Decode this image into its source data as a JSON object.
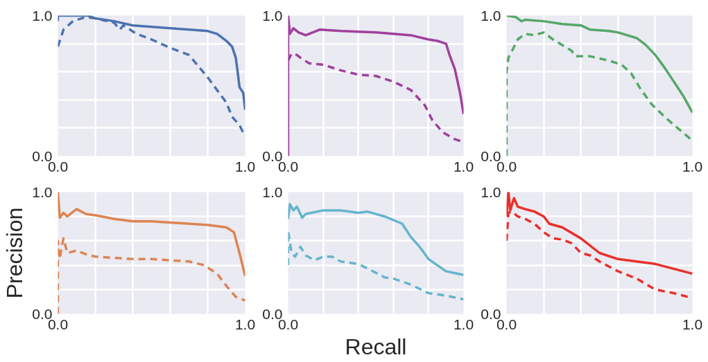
{
  "chart_data": [
    {
      "type": "line",
      "xlim": [
        0,
        1
      ],
      "ylim": [
        0,
        1
      ],
      "xticks": [
        {
          "value": 0,
          "label": "0.0"
        },
        {
          "value": 0.2,
          "label": null
        },
        {
          "value": 0.4,
          "label": null
        },
        {
          "value": 0.6,
          "label": null
        },
        {
          "value": 0.8,
          "label": null
        },
        {
          "value": 1,
          "label": "1.0"
        }
      ],
      "yticks": [
        {
          "value": 0,
          "label": "0.0"
        },
        {
          "value": 0.2,
          "label": null
        },
        {
          "value": 0.4,
          "label": null
        },
        {
          "value": 0.6,
          "label": null
        },
        {
          "value": 0.8,
          "label": null
        },
        {
          "value": 1,
          "label": "1.0"
        }
      ],
      "grid": true,
      "marker": "none",
      "series": [
        {
          "color": "#4c72b0",
          "line_style": "solid",
          "x": [
            0,
            0,
            0.16,
            0.2,
            0.3,
            0.4,
            0.5,
            0.6,
            0.7,
            0.8,
            0.85,
            0.9,
            0.93,
            0.95,
            0.96,
            0.97,
            0.99,
            1.0
          ],
          "values": [
            0.96,
            1.0,
            1.0,
            0.98,
            0.96,
            0.93,
            0.92,
            0.91,
            0.9,
            0.89,
            0.87,
            0.82,
            0.78,
            0.7,
            0.6,
            0.49,
            0.45,
            0.33
          ]
        },
        {
          "color": "#4c72b0",
          "line_style": "dashed",
          "x": [
            0,
            0.01,
            0.03,
            0.08,
            0.15,
            0.2,
            0.3,
            0.33,
            0.35,
            0.42,
            0.5,
            0.6,
            0.7,
            0.75,
            0.8,
            0.85,
            0.9,
            0.93,
            0.97,
            1.0
          ],
          "values": [
            0.78,
            0.82,
            0.9,
            0.96,
            0.99,
            0.98,
            0.95,
            0.9,
            0.93,
            0.87,
            0.83,
            0.77,
            0.72,
            0.64,
            0.56,
            0.47,
            0.38,
            0.28,
            0.22,
            0.14
          ]
        }
      ]
    },
    {
      "type": "line",
      "xlim": [
        0,
        1
      ],
      "ylim": [
        0,
        1
      ],
      "xticks": [
        {
          "value": 0,
          "label": "0.0"
        },
        {
          "value": 0.2,
          "label": null
        },
        {
          "value": 0.4,
          "label": null
        },
        {
          "value": 0.6,
          "label": null
        },
        {
          "value": 0.8,
          "label": null
        },
        {
          "value": 1,
          "label": "1.0"
        }
      ],
      "yticks": [
        {
          "value": 0,
          "label": "0.0"
        },
        {
          "value": 0.2,
          "label": null
        },
        {
          "value": 0.4,
          "label": null
        },
        {
          "value": 0.6,
          "label": null
        },
        {
          "value": 0.8,
          "label": null
        },
        {
          "value": 1,
          "label": "1.0"
        }
      ],
      "grid": true,
      "marker": "none",
      "series": [
        {
          "color": "#a0409c",
          "line_style": "solid",
          "x": [
            0,
            0,
            0.01,
            0.03,
            0.06,
            0.1,
            0.18,
            0.3,
            0.5,
            0.7,
            0.8,
            0.85,
            0.9,
            0.92,
            0.95,
            0.98,
            1.0
          ],
          "values": [
            0,
            1.0,
            0.87,
            0.91,
            0.88,
            0.86,
            0.9,
            0.89,
            0.88,
            0.86,
            0.83,
            0.82,
            0.8,
            0.72,
            0.62,
            0.45,
            0.3
          ]
        },
        {
          "color": "#a0409c",
          "line_style": "dashed",
          "x": [
            0,
            0.02,
            0.05,
            0.07,
            0.12,
            0.2,
            0.3,
            0.4,
            0.5,
            0.6,
            0.7,
            0.78,
            0.82,
            0.88,
            0.95,
            1.0
          ],
          "values": [
            0.68,
            0.73,
            0.72,
            0.7,
            0.66,
            0.65,
            0.61,
            0.58,
            0.57,
            0.53,
            0.47,
            0.36,
            0.26,
            0.17,
            0.12,
            0.1
          ]
        }
      ]
    },
    {
      "type": "line",
      "xlim": [
        0,
        1
      ],
      "ylim": [
        0,
        1
      ],
      "xticks": [
        {
          "value": 0,
          "label": "0.0"
        },
        {
          "value": 0.2,
          "label": null
        },
        {
          "value": 0.4,
          "label": null
        },
        {
          "value": 0.6,
          "label": null
        },
        {
          "value": 0.8,
          "label": null
        },
        {
          "value": 1,
          "label": "1.0"
        }
      ],
      "yticks": [
        {
          "value": 0,
          "label": "0.0"
        },
        {
          "value": 0.2,
          "label": null
        },
        {
          "value": 0.4,
          "label": null
        },
        {
          "value": 0.6,
          "label": null
        },
        {
          "value": 0.8,
          "label": null
        },
        {
          "value": 1,
          "label": "1.0"
        }
      ],
      "grid": true,
      "marker": "none",
      "series": [
        {
          "color": "#55a868",
          "line_style": "solid",
          "x": [
            0,
            0.05,
            0.08,
            0.1,
            0.2,
            0.3,
            0.4,
            0.45,
            0.55,
            0.6,
            0.7,
            0.75,
            0.8,
            0.85,
            0.9,
            0.95,
            1.0
          ],
          "values": [
            1.0,
            0.99,
            0.96,
            0.97,
            0.96,
            0.94,
            0.93,
            0.9,
            0.89,
            0.88,
            0.84,
            0.79,
            0.72,
            0.63,
            0.53,
            0.43,
            0.31
          ]
        },
        {
          "color": "#55a868",
          "line_style": "dashed",
          "x": [
            0,
            0,
            0.01,
            0.03,
            0.06,
            0.1,
            0.15,
            0.2,
            0.25,
            0.3,
            0.35,
            0.37,
            0.45,
            0.55,
            0.62,
            0.67,
            0.72,
            0.78,
            0.85,
            0.92,
            1.0
          ],
          "values": [
            0,
            0.6,
            0.7,
            0.75,
            0.83,
            0.87,
            0.86,
            0.88,
            0.83,
            0.79,
            0.75,
            0.71,
            0.71,
            0.68,
            0.65,
            0.59,
            0.48,
            0.37,
            0.28,
            0.2,
            0.11
          ]
        }
      ]
    },
    {
      "type": "line",
      "ylabel": "Precision",
      "xlim": [
        0,
        1
      ],
      "ylim": [
        0,
        1
      ],
      "xticks": [
        {
          "value": 0,
          "label": "0.0"
        },
        {
          "value": 0.2,
          "label": null
        },
        {
          "value": 0.4,
          "label": null
        },
        {
          "value": 0.6,
          "label": null
        },
        {
          "value": 0.8,
          "label": null
        },
        {
          "value": 1,
          "label": "1.0"
        }
      ],
      "yticks": [
        {
          "value": 0,
          "label": "0.0"
        },
        {
          "value": 0.2,
          "label": null
        },
        {
          "value": 0.4,
          "label": null
        },
        {
          "value": 0.6,
          "label": null
        },
        {
          "value": 0.8,
          "label": null
        },
        {
          "value": 1,
          "label": "1.0"
        }
      ],
      "grid": true,
      "marker": "none",
      "series": [
        {
          "color": "#dd8452",
          "line_style": "solid",
          "x": [
            0,
            0.01,
            0.03,
            0.05,
            0.1,
            0.15,
            0.2,
            0.3,
            0.4,
            0.5,
            0.6,
            0.7,
            0.8,
            0.9,
            0.94,
            0.97,
            1.0
          ],
          "values": [
            1.0,
            0.79,
            0.83,
            0.8,
            0.86,
            0.82,
            0.81,
            0.78,
            0.76,
            0.76,
            0.75,
            0.74,
            0.73,
            0.71,
            0.67,
            0.5,
            0.31
          ]
        },
        {
          "color": "#dd8452",
          "line_style": "dashed",
          "x": [
            0,
            0,
            0.01,
            0.02,
            0.03,
            0.05,
            0.1,
            0.15,
            0.2,
            0.3,
            0.4,
            0.5,
            0.6,
            0.7,
            0.78,
            0.85,
            0.9,
            0.95,
            1.0
          ],
          "values": [
            0,
            0.6,
            0.45,
            0.55,
            0.62,
            0.5,
            0.52,
            0.49,
            0.47,
            0.46,
            0.45,
            0.45,
            0.44,
            0.43,
            0.4,
            0.33,
            0.23,
            0.14,
            0.11
          ]
        }
      ]
    },
    {
      "type": "line",
      "xlabel": "Recall",
      "xlim": [
        0,
        1
      ],
      "ylim": [
        0,
        1
      ],
      "xticks": [
        {
          "value": 0,
          "label": "0.0"
        },
        {
          "value": 0.2,
          "label": null
        },
        {
          "value": 0.4,
          "label": null
        },
        {
          "value": 0.6,
          "label": null
        },
        {
          "value": 0.8,
          "label": null
        },
        {
          "value": 1,
          "label": "1.0"
        }
      ],
      "yticks": [
        {
          "value": 0,
          "label": "0.0"
        },
        {
          "value": 0.2,
          "label": null
        },
        {
          "value": 0.4,
          "label": null
        },
        {
          "value": 0.6,
          "label": null
        },
        {
          "value": 0.8,
          "label": null
        },
        {
          "value": 1,
          "label": "1.0"
        }
      ],
      "grid": true,
      "marker": "none",
      "series": [
        {
          "color": "#64b5cd",
          "line_style": "solid",
          "x": [
            0,
            0.01,
            0.03,
            0.05,
            0.08,
            0.1,
            0.2,
            0.3,
            0.4,
            0.45,
            0.55,
            0.65,
            0.7,
            0.75,
            0.8,
            0.85,
            0.9,
            1.0
          ],
          "values": [
            0.78,
            0.9,
            0.85,
            0.88,
            0.79,
            0.82,
            0.85,
            0.85,
            0.83,
            0.84,
            0.8,
            0.74,
            0.63,
            0.55,
            0.45,
            0.4,
            0.35,
            0.32
          ]
        },
        {
          "color": "#64b5cd",
          "line_style": "dashed",
          "x": [
            0,
            0,
            0.02,
            0.04,
            0.07,
            0.1,
            0.15,
            0.2,
            0.25,
            0.3,
            0.4,
            0.47,
            0.55,
            0.6,
            0.7,
            0.8,
            0.9,
            1.0
          ],
          "values": [
            0.4,
            0.68,
            0.5,
            0.47,
            0.55,
            0.48,
            0.44,
            0.47,
            0.47,
            0.43,
            0.41,
            0.36,
            0.3,
            0.29,
            0.24,
            0.17,
            0.15,
            0.12
          ]
        }
      ]
    },
    {
      "type": "line",
      "xlim": [
        0,
        1
      ],
      "ylim": [
        0,
        1
      ],
      "xticks": [
        {
          "value": 0,
          "label": "0.0"
        },
        {
          "value": 0.2,
          "label": null
        },
        {
          "value": 0.4,
          "label": null
        },
        {
          "value": 0.6,
          "label": null
        },
        {
          "value": 0.8,
          "label": null
        },
        {
          "value": 1,
          "label": "1.0"
        }
      ],
      "yticks": [
        {
          "value": 0,
          "label": "0.0"
        },
        {
          "value": 0.2,
          "label": null
        },
        {
          "value": 0.4,
          "label": null
        },
        {
          "value": 0.6,
          "label": null
        },
        {
          "value": 0.8,
          "label": null
        },
        {
          "value": 1,
          "label": "1.0"
        }
      ],
      "grid": true,
      "marker": "none",
      "series": [
        {
          "color": "#e8302a",
          "line_style": "solid",
          "x": [
            0,
            0.01,
            0.02,
            0.04,
            0.06,
            0.1,
            0.15,
            0.2,
            0.23,
            0.3,
            0.4,
            0.5,
            0.6,
            0.7,
            0.8,
            0.9,
            1.0
          ],
          "values": [
            0.8,
            1.0,
            0.85,
            0.95,
            0.88,
            0.86,
            0.84,
            0.8,
            0.74,
            0.71,
            0.62,
            0.5,
            0.45,
            0.43,
            0.41,
            0.37,
            0.33
          ]
        },
        {
          "color": "#e8302a",
          "line_style": "dashed",
          "x": [
            0,
            0.01,
            0.03,
            0.06,
            0.1,
            0.15,
            0.2,
            0.25,
            0.3,
            0.35,
            0.4,
            0.45,
            0.5,
            0.6,
            0.7,
            0.8,
            0.9,
            1.0
          ],
          "values": [
            0.6,
            0.83,
            0.84,
            0.8,
            0.78,
            0.74,
            0.67,
            0.62,
            0.61,
            0.58,
            0.5,
            0.48,
            0.43,
            0.35,
            0.29,
            0.2,
            0.17,
            0.13
          ]
        }
      ]
    }
  ]
}
